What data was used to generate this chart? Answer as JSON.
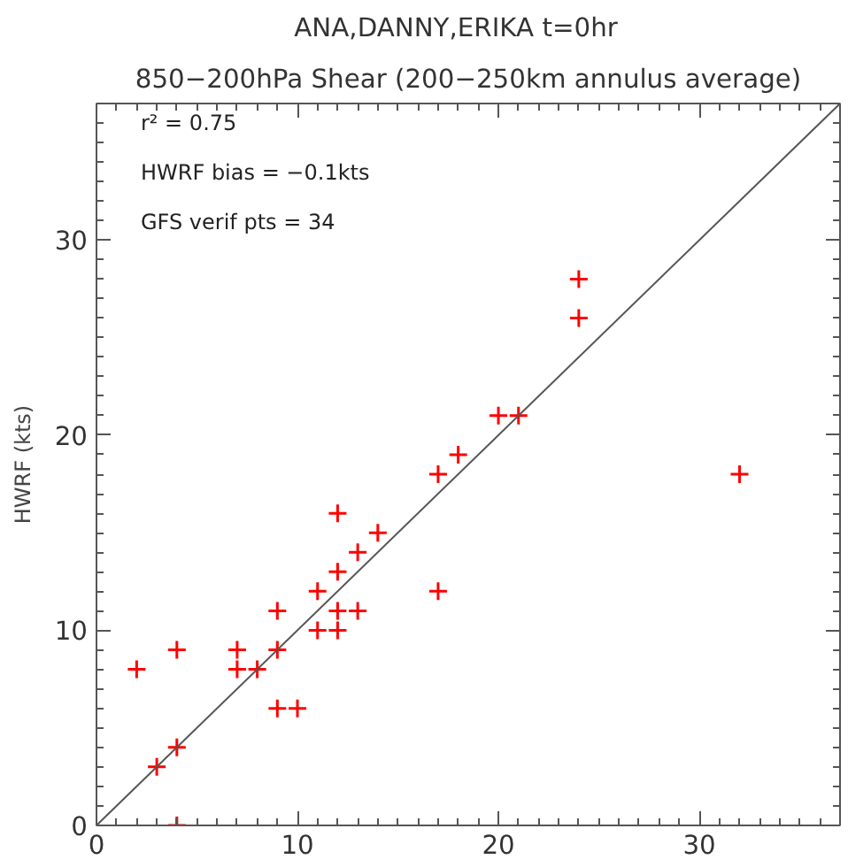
{
  "chart_data": {
    "type": "scatter",
    "title": "ANA,DANNY,ERIKA    t=0hr",
    "subtitle": "850−200hPa Shear (200−250km annulus average)",
    "ylabel": "HWRF (kts)",
    "annotations": [
      "r² = 0.75",
      "HWRF bias = −0.1kts",
      "GFS verif pts = 34"
    ],
    "xlim": [
      0,
      37
    ],
    "ylim": [
      0,
      37
    ],
    "xticks": [
      0,
      10,
      20,
      30
    ],
    "yticks": [
      0,
      10,
      20,
      30
    ],
    "grid": false,
    "marker": "cross",
    "series": [
      {
        "color": "#ff0000",
        "x": [
          2,
          4,
          3,
          4,
          4,
          7,
          7,
          8,
          9,
          9,
          9,
          10,
          11,
          11,
          12,
          12,
          12,
          12,
          13,
          13,
          14,
          17,
          17,
          18,
          20,
          21,
          24,
          24,
          32
        ],
        "values": [
          8,
          9,
          3,
          4,
          0,
          9,
          8,
          8,
          9,
          11,
          6,
          6,
          10,
          12,
          10,
          11,
          13,
          16,
          11,
          14,
          15,
          12,
          18,
          19,
          21,
          21,
          26,
          28,
          18
        ]
      },
      {
        "type": "line",
        "color": "#555555",
        "x": [
          0,
          37
        ],
        "values": [
          0,
          37
        ],
        "marker": "none"
      }
    ]
  }
}
